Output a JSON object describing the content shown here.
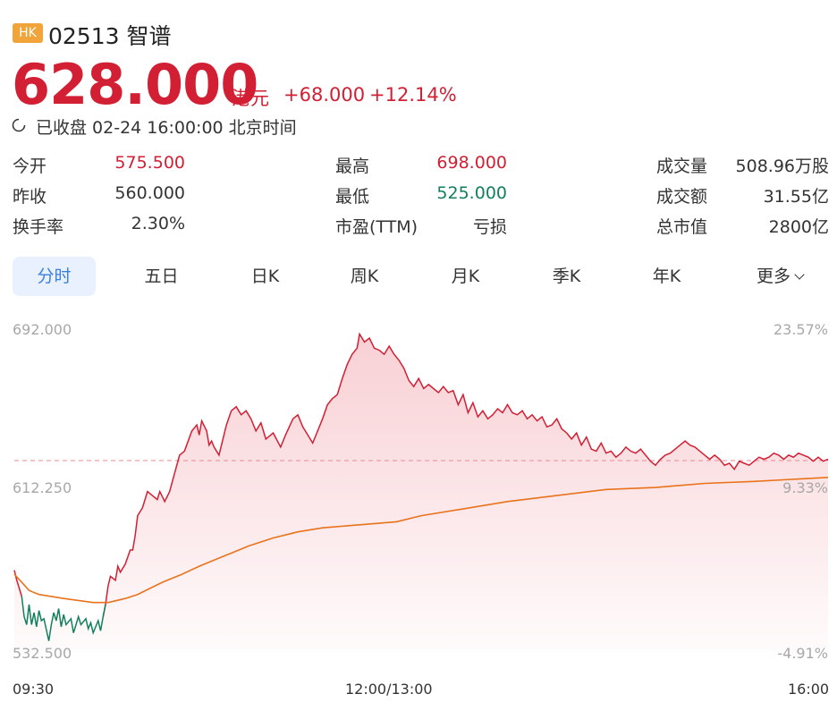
{
  "header": {
    "market_badge": "HK",
    "stock_title": "02513 智谱",
    "price": "628.000",
    "currency": "港元",
    "change": "+68.000",
    "change_pct": "+12.14%",
    "status": "已收盘 02-24 16:00:00 北京时间"
  },
  "stats": [
    {
      "label": "今开",
      "value": "575.500",
      "tone": "up"
    },
    {
      "label": "最高",
      "value": "698.000",
      "tone": "up"
    },
    {
      "label": "成交量",
      "value": "508.96万股",
      "tone": "neutral"
    },
    {
      "label": "昨收",
      "value": "560.000",
      "tone": "neutral"
    },
    {
      "label": "最低",
      "value": "525.000",
      "tone": "down"
    },
    {
      "label": "成交额",
      "value": "31.55亿",
      "tone": "neutral"
    },
    {
      "label": "换手率",
      "value": "2.30%",
      "tone": "neutral"
    },
    {
      "label": "市盈(TTM)",
      "value": "亏损",
      "tone": "neutral"
    },
    {
      "label": "总市值",
      "value": "2800亿",
      "tone": "neutral"
    }
  ],
  "tabs": [
    {
      "label": "分时",
      "active": true
    },
    {
      "label": "五日",
      "active": false
    },
    {
      "label": "日K",
      "active": false
    },
    {
      "label": "周K",
      "active": false
    },
    {
      "label": "月K",
      "active": false
    },
    {
      "label": "季K",
      "active": false
    },
    {
      "label": "年K",
      "active": false
    },
    {
      "label": "更多",
      "active": false
    }
  ],
  "colors": {
    "up": "#d21f33",
    "down": "#12805c",
    "avg_line": "#e8731c",
    "accent": "#3b7fe0"
  },
  "chart_data": {
    "type": "line",
    "y_ticks": [
      "692.000",
      "612.250",
      "532.500"
    ],
    "y_ticks_right": [
      "23.57%",
      "9.33%",
      "-4.91%"
    ],
    "x_ticks": [
      "09:30",
      "12:00/13:00",
      "16:00"
    ],
    "ylim": [
      532.5,
      692.0
    ],
    "prev_close": 560.0,
    "reference_line": 627.3,
    "x_minutes": [
      0,
      330
    ],
    "series": [
      {
        "role": "price",
        "points": [
          [
            0,
            573
          ],
          [
            1,
            568
          ],
          [
            3,
            560
          ],
          [
            4,
            550
          ],
          [
            5,
            546
          ],
          [
            6,
            556
          ],
          [
            7,
            546
          ],
          [
            8,
            552
          ],
          [
            9,
            545
          ],
          [
            10,
            553
          ],
          [
            11,
            548
          ],
          [
            12,
            549
          ],
          [
            14,
            538
          ],
          [
            15,
            546
          ],
          [
            16,
            552
          ],
          [
            17,
            548
          ],
          [
            18,
            554
          ],
          [
            19,
            545
          ],
          [
            20,
            551
          ],
          [
            21,
            546
          ],
          [
            23,
            549
          ],
          [
            24,
            542
          ],
          [
            26,
            550
          ],
          [
            27,
            546
          ],
          [
            29,
            549
          ],
          [
            30,
            544
          ],
          [
            31,
            547
          ],
          [
            32,
            542
          ],
          [
            34,
            548
          ],
          [
            35,
            543
          ],
          [
            36,
            550
          ],
          [
            37,
            556
          ],
          [
            38,
            565
          ],
          [
            39,
            570
          ],
          [
            41,
            568
          ],
          [
            42,
            575
          ],
          [
            43,
            572
          ],
          [
            45,
            576
          ],
          [
            47,
            583
          ],
          [
            48,
            583
          ],
          [
            49,
            590
          ],
          [
            50,
            600
          ],
          [
            52,
            604
          ],
          [
            54,
            612
          ],
          [
            56,
            610
          ],
          [
            58,
            608
          ],
          [
            59,
            612
          ],
          [
            61,
            607
          ],
          [
            63,
            612
          ],
          [
            65,
            621
          ],
          [
            67,
            630
          ],
          [
            69,
            632
          ],
          [
            72,
            642
          ],
          [
            74,
            645
          ],
          [
            75,
            640
          ],
          [
            76,
            647
          ],
          [
            78,
            642
          ],
          [
            79,
            635
          ],
          [
            80,
            637
          ],
          [
            81,
            634
          ],
          [
            83,
            630
          ],
          [
            86,
            645
          ],
          [
            88,
            652
          ],
          [
            90,
            654
          ],
          [
            92,
            650
          ],
          [
            94,
            652
          ],
          [
            96,
            648
          ],
          [
            98,
            642
          ],
          [
            100,
            646
          ],
          [
            102,
            638
          ],
          [
            105,
            641
          ],
          [
            108,
            634
          ],
          [
            110,
            640
          ],
          [
            113,
            648
          ],
          [
            115,
            650
          ],
          [
            117,
            644
          ],
          [
            119,
            640
          ],
          [
            121,
            636
          ],
          [
            123,
            642
          ],
          [
            125,
            648
          ],
          [
            127,
            655
          ],
          [
            129,
            658
          ],
          [
            131,
            660
          ],
          [
            133,
            668
          ],
          [
            135,
            675
          ],
          [
            137,
            680
          ],
          [
            139,
            683
          ],
          [
            140,
            690
          ],
          [
            142,
            686
          ],
          [
            144,
            688
          ],
          [
            146,
            683
          ],
          [
            148,
            682
          ],
          [
            150,
            680
          ],
          [
            152,
            684
          ],
          [
            154,
            680
          ],
          [
            156,
            677
          ],
          [
            158,
            673
          ],
          [
            160,
            667
          ],
          [
            162,
            664
          ],
          [
            164,
            668
          ],
          [
            166,
            663
          ],
          [
            168,
            665
          ],
          [
            170,
            663
          ],
          [
            172,
            661
          ],
          [
            174,
            664
          ],
          [
            176,
            661
          ],
          [
            178,
            662
          ],
          [
            180,
            655
          ],
          [
            182,
            660
          ],
          [
            184,
            651
          ],
          [
            186,
            656
          ],
          [
            188,
            649
          ],
          [
            190,
            652
          ],
          [
            192,
            648
          ],
          [
            194,
            650
          ],
          [
            196,
            653
          ],
          [
            198,
            651
          ],
          [
            200,
            655
          ],
          [
            202,
            651
          ],
          [
            204,
            650
          ],
          [
            206,
            652
          ],
          [
            208,
            648
          ],
          [
            210,
            650
          ],
          [
            212,
            647
          ],
          [
            214,
            649
          ],
          [
            216,
            644
          ],
          [
            218,
            645
          ],
          [
            220,
            648
          ],
          [
            222,
            643
          ],
          [
            224,
            641
          ],
          [
            226,
            638
          ],
          [
            228,
            641
          ],
          [
            230,
            635
          ],
          [
            232,
            639
          ],
          [
            234,
            633
          ],
          [
            236,
            632
          ],
          [
            238,
            636
          ],
          [
            240,
            631
          ],
          [
            242,
            632
          ],
          [
            244,
            629
          ],
          [
            246,
            631
          ],
          [
            248,
            634
          ],
          [
            250,
            632
          ],
          [
            252,
            631
          ],
          [
            254,
            633
          ],
          [
            256,
            630
          ],
          [
            258,
            627
          ],
          [
            260,
            625
          ],
          [
            262,
            628
          ],
          [
            264,
            630
          ],
          [
            266,
            631
          ],
          [
            268,
            633
          ],
          [
            270,
            635
          ],
          [
            272,
            637
          ],
          [
            274,
            635
          ],
          [
            276,
            634
          ],
          [
            278,
            632
          ],
          [
            280,
            630
          ],
          [
            282,
            628
          ],
          [
            284,
            630
          ],
          [
            286,
            628
          ],
          [
            288,
            625
          ],
          [
            290,
            626
          ],
          [
            292,
            623
          ],
          [
            294,
            627
          ],
          [
            296,
            626
          ],
          [
            298,
            625
          ],
          [
            300,
            627
          ],
          [
            302,
            629
          ],
          [
            304,
            628
          ],
          [
            306,
            629
          ],
          [
            308,
            631
          ],
          [
            310,
            630
          ],
          [
            312,
            628
          ],
          [
            314,
            630
          ],
          [
            316,
            629
          ],
          [
            318,
            631
          ],
          [
            320,
            630
          ],
          [
            322,
            629
          ],
          [
            324,
            627
          ],
          [
            326,
            629
          ],
          [
            328,
            627
          ],
          [
            330,
            628
          ]
        ]
      },
      {
        "role": "average",
        "points": [
          [
            0,
            571
          ],
          [
            3,
            567
          ],
          [
            6,
            563
          ],
          [
            10,
            561
          ],
          [
            15,
            560
          ],
          [
            20,
            559
          ],
          [
            26,
            558
          ],
          [
            32,
            557
          ],
          [
            38,
            557
          ],
          [
            45,
            559
          ],
          [
            50,
            561
          ],
          [
            55,
            564
          ],
          [
            60,
            567
          ],
          [
            68,
            571
          ],
          [
            75,
            575
          ],
          [
            85,
            580
          ],
          [
            95,
            585
          ],
          [
            105,
            589
          ],
          [
            115,
            592
          ],
          [
            125,
            594
          ],
          [
            135,
            595
          ],
          [
            145,
            596
          ],
          [
            155,
            597
          ],
          [
            165,
            600
          ],
          [
            180,
            603
          ],
          [
            200,
            607
          ],
          [
            220,
            610
          ],
          [
            240,
            613
          ],
          [
            260,
            614
          ],
          [
            280,
            616
          ],
          [
            300,
            617
          ],
          [
            315,
            618
          ],
          [
            330,
            619
          ]
        ]
      }
    ]
  }
}
